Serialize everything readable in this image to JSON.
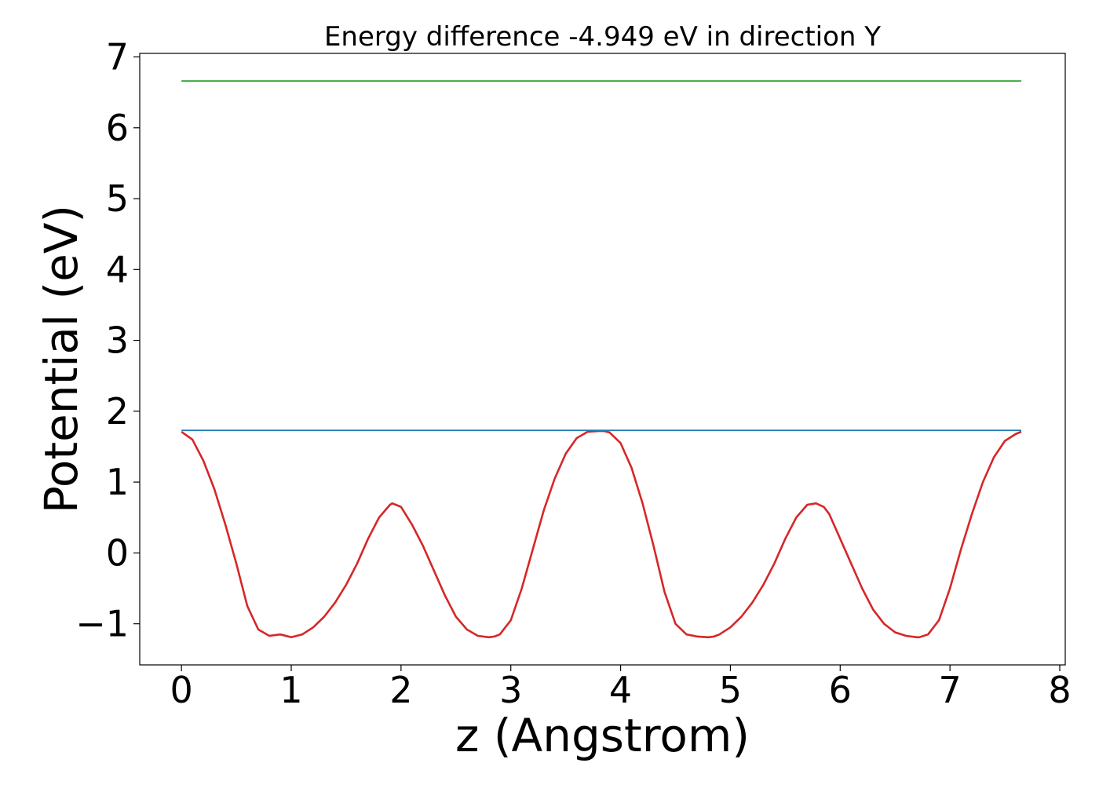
{
  "chart_data": {
    "type": "line",
    "title": "Energy difference -4.949 eV in direction Y",
    "xlabel": "z (Angstrom)",
    "ylabel": "Potential (eV)",
    "xlim": [
      -0.38,
      8.05
    ],
    "ylim": [
      -1.58,
      7.05
    ],
    "xticks": [
      0,
      1,
      2,
      3,
      4,
      5,
      6,
      7,
      8
    ],
    "xtick_labels": [
      "0",
      "1",
      "2",
      "3",
      "4",
      "5",
      "6",
      "7",
      "8"
    ],
    "yticks": [
      -1,
      0,
      1,
      2,
      3,
      4,
      5,
      6,
      7
    ],
    "ytick_labels": [
      "−1",
      "0",
      "1",
      "2",
      "3",
      "4",
      "5",
      "6",
      "7"
    ],
    "grid": false,
    "legend": "none",
    "series": [
      {
        "color": "#d62728",
        "x": [
          0.0,
          0.1,
          0.2,
          0.3,
          0.4,
          0.5,
          0.6,
          0.7,
          0.8,
          0.9,
          1.0,
          1.1,
          1.2,
          1.3,
          1.4,
          1.5,
          1.6,
          1.7,
          1.8,
          1.9,
          1.92,
          2.0,
          2.1,
          2.2,
          2.3,
          2.4,
          2.5,
          2.6,
          2.7,
          2.8,
          2.85,
          2.9,
          3.0,
          3.1,
          3.2,
          3.3,
          3.4,
          3.5,
          3.6,
          3.7,
          3.8,
          3.85,
          3.9,
          4.0,
          4.1,
          4.2,
          4.3,
          4.4,
          4.5,
          4.6,
          4.7,
          4.8,
          4.85,
          4.9,
          5.0,
          5.1,
          5.2,
          5.3,
          5.4,
          5.5,
          5.6,
          5.7,
          5.78,
          5.85,
          5.9,
          6.0,
          6.1,
          6.2,
          6.3,
          6.4,
          6.5,
          6.6,
          6.7,
          6.72,
          6.8,
          6.9,
          7.0,
          7.1,
          7.2,
          7.3,
          7.4,
          7.5,
          7.6,
          7.65
        ],
        "y": [
          1.71,
          1.6,
          1.3,
          0.9,
          0.4,
          -0.15,
          -0.75,
          -1.08,
          -1.17,
          -1.15,
          -1.19,
          -1.15,
          -1.05,
          -0.9,
          -0.7,
          -0.45,
          -0.15,
          0.2,
          0.5,
          0.68,
          0.7,
          0.65,
          0.4,
          0.1,
          -0.25,
          -0.6,
          -0.9,
          -1.08,
          -1.17,
          -1.19,
          -1.18,
          -1.15,
          -0.95,
          -0.5,
          0.05,
          0.6,
          1.05,
          1.4,
          1.62,
          1.71,
          1.72,
          1.72,
          1.7,
          1.55,
          1.2,
          0.7,
          0.1,
          -0.55,
          -1.0,
          -1.15,
          -1.18,
          -1.19,
          -1.18,
          -1.15,
          -1.05,
          -0.9,
          -0.7,
          -0.45,
          -0.15,
          0.2,
          0.5,
          0.68,
          0.7,
          0.65,
          0.55,
          0.2,
          -0.15,
          -0.5,
          -0.8,
          -1.0,
          -1.12,
          -1.17,
          -1.19,
          -1.19,
          -1.15,
          -0.95,
          -0.5,
          0.05,
          0.55,
          1.0,
          1.35,
          1.58,
          1.68,
          1.71
        ]
      },
      {
        "color": "#1f77b4",
        "x": [
          0.0,
          7.65
        ],
        "y": [
          1.73,
          1.73
        ]
      },
      {
        "color": "#2ca02c",
        "x": [
          0.0,
          7.65
        ],
        "y": [
          6.66,
          6.66
        ]
      }
    ]
  }
}
